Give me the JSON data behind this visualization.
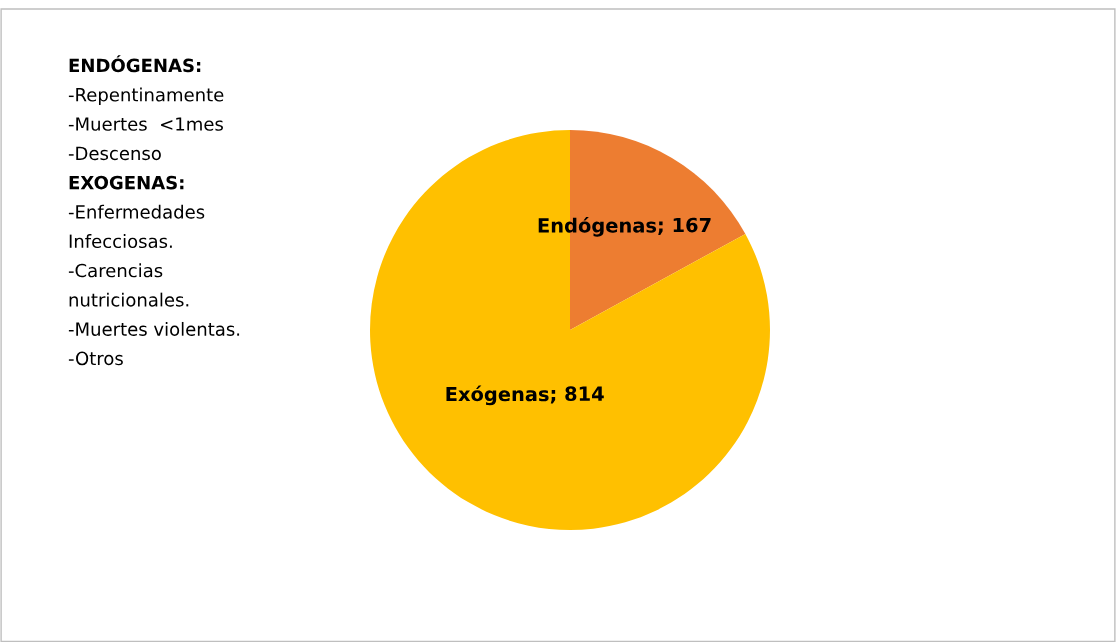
{
  "chart_data": {
    "type": "pie",
    "categories": [
      "Endógenas",
      "Exógenas"
    ],
    "values": [
      167,
      814
    ],
    "colors": [
      "#ed7d31",
      "#ffc000"
    ],
    "value_labels": [
      "; 167",
      "; 814"
    ],
    "annotations": [
      "ENDÓGENAS:",
      "-Repentinamente",
      "-Muertes  <1mes",
      "-Descenso",
      "EXOGENAS:",
      "-Enfermedades",
      "Infecciosas.",
      "-Carencias",
      "nutricionales.",
      "-Muertes violentas.",
      "-Otros"
    ],
    "legend": false
  }
}
